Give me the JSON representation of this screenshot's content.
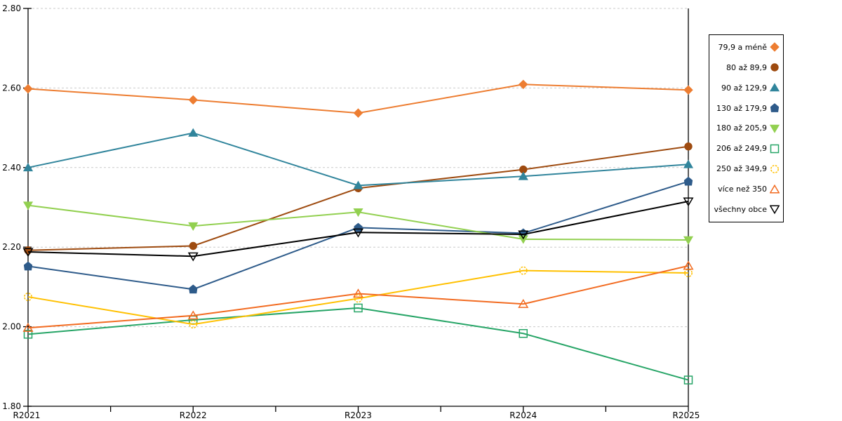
{
  "chart_data": {
    "type": "line",
    "title": "",
    "xlabel": "",
    "ylabel": "",
    "categories": [
      "R2021",
      "R2022",
      "R2023",
      "R2024",
      "R2025"
    ],
    "ylim": [
      1.8,
      2.8
    ],
    "ytick_step": 0.2,
    "ytick_labels": [
      "1.80",
      "2.00",
      "2.20",
      "2.40",
      "2.60",
      "2.80"
    ],
    "grid": "horizontal-dashed",
    "grid_color": "#c9c9c9",
    "axis_color": "#000000",
    "legend_position": "right",
    "series": [
      {
        "name": "79,9 a méně",
        "marker": "diamond",
        "marker_fill": true,
        "color": "#ED7D31",
        "values": [
          2.598,
          2.57,
          2.537,
          2.609,
          2.595
        ]
      },
      {
        "name": "80 až 89,9",
        "marker": "circle",
        "marker_fill": true,
        "color": "#9E4B10",
        "values": [
          2.192,
          2.203,
          2.348,
          2.395,
          2.453
        ]
      },
      {
        "name": "90 až 129,9",
        "marker": "triangle-up",
        "marker_fill": true,
        "color": "#31859C",
        "values": [
          2.4,
          2.487,
          2.355,
          2.378,
          2.408
        ]
      },
      {
        "name": "130 až 179,9",
        "marker": "pentagon",
        "marker_fill": true,
        "color": "#2E5B8A",
        "values": [
          2.152,
          2.094,
          2.249,
          2.235,
          2.365
        ]
      },
      {
        "name": "180 až 205,9",
        "marker": "triangle-down",
        "marker_fill": true,
        "color": "#92D050",
        "values": [
          2.305,
          2.253,
          2.288,
          2.22,
          2.218
        ]
      },
      {
        "name": "206 až 249,9",
        "marker": "square",
        "marker_fill": false,
        "color": "#27A567",
        "values": [
          1.981,
          2.017,
          2.047,
          1.983,
          1.866
        ]
      },
      {
        "name": "250 až 349,9",
        "marker": "circle",
        "marker_fill": false,
        "marker_dashed": true,
        "color": "#FFC000",
        "values": [
          2.075,
          2.006,
          2.071,
          2.141,
          2.135
        ]
      },
      {
        "name": "více než 350",
        "marker": "triangle-up",
        "marker_fill": false,
        "color": "#F26B21",
        "values": [
          1.997,
          2.028,
          2.083,
          2.057,
          2.153
        ]
      },
      {
        "name": "všechny obce",
        "marker": "triangle-down",
        "marker_fill": false,
        "color": "#000000",
        "values": [
          2.188,
          2.177,
          2.237,
          2.232,
          2.315
        ]
      }
    ]
  }
}
